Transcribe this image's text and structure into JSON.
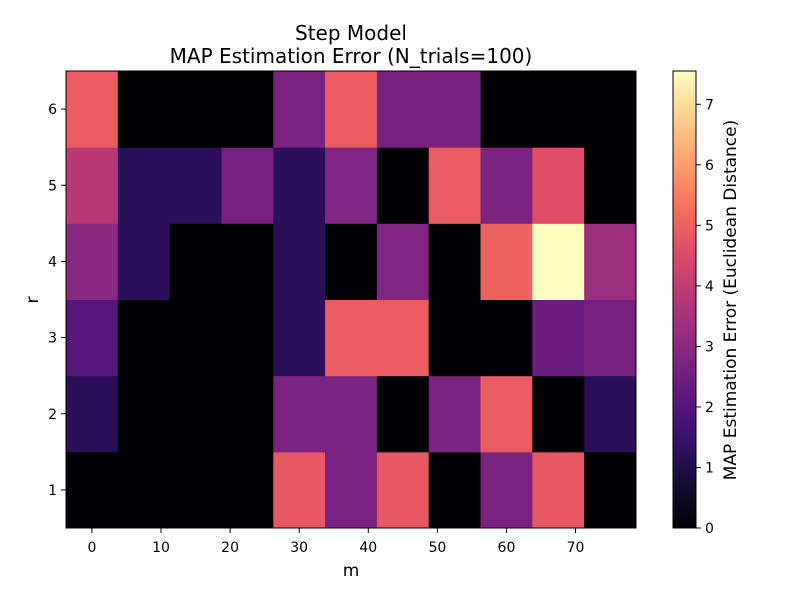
{
  "chart_data": {
    "type": "heatmap",
    "title_line1": "Step Model",
    "title_line2": "MAP Estimation Error (N_trials=100)",
    "xlabel": "m",
    "ylabel": "r",
    "colorbar_label": "MAP Estimation Error (Euclidean Distance)",
    "colormap": "magma",
    "x_tick_labels": [
      "0",
      "10",
      "20",
      "30",
      "40",
      "50",
      "60",
      "70"
    ],
    "y_tick_labels": [
      "1",
      "2",
      "3",
      "4",
      "5",
      "6"
    ],
    "colorbar_ticks": [
      "0",
      "1",
      "2",
      "3",
      "4",
      "5",
      "6",
      "7"
    ],
    "value_range": [
      0,
      7.55
    ],
    "x_values": [
      0,
      7.5,
      15,
      22.5,
      30,
      37.5,
      45,
      52.5,
      60,
      67.5,
      75
    ],
    "y_values": [
      1,
      2,
      3,
      4,
      5,
      6
    ],
    "values": [
      [
        0.0,
        0.0,
        0.0,
        0.0,
        4.8,
        2.7,
        4.8,
        0.0,
        2.7,
        4.8,
        0.0
      ],
      [
        1.2,
        0.0,
        0.0,
        0.0,
        2.7,
        2.7,
        0.0,
        2.7,
        4.9,
        0.0,
        1.2
      ],
      [
        2.0,
        0.0,
        0.0,
        0.0,
        1.2,
        4.9,
        4.9,
        0.0,
        0.0,
        2.4,
        2.6
      ],
      [
        3.0,
        1.2,
        0.0,
        0.0,
        1.2,
        0.0,
        2.8,
        0.0,
        5.0,
        7.55,
        3.3
      ],
      [
        3.8,
        1.2,
        1.2,
        2.6,
        1.2,
        2.8,
        0.0,
        4.9,
        2.7,
        4.6,
        0.0
      ],
      [
        4.9,
        0.0,
        0.0,
        0.0,
        2.7,
        4.9,
        2.6,
        2.6,
        0.0,
        0.0,
        0.0
      ]
    ]
  }
}
